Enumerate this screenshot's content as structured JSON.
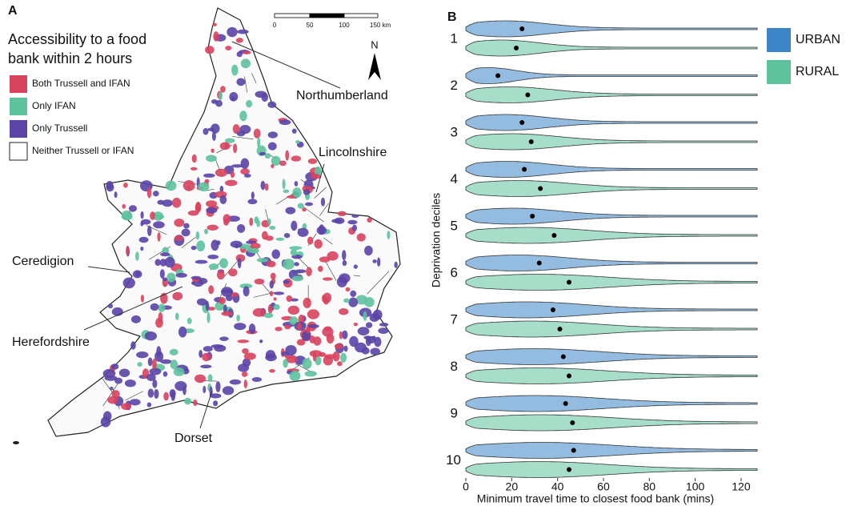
{
  "map": {
    "panel_label": "A",
    "title_lines": [
      "Accessibility to a food",
      "bank within 2 hours"
    ],
    "legend": [
      {
        "label": "Both Trussell and IFAN",
        "color": "#d8435e"
      },
      {
        "label": "Only IFAN",
        "color": "#5ec29d"
      },
      {
        "label": "Only Trussell",
        "color": "#5b44a6"
      },
      {
        "label": "Neither Trussell or IFAN",
        "color": "#ffffff"
      }
    ],
    "scale_bar": [
      "0",
      "50",
      "100",
      "150 km"
    ],
    "north": "N",
    "regions": [
      "Northumberland",
      "Lincolnshire",
      "Ceredigion",
      "Herefordshire",
      "Dorset"
    ]
  },
  "chart_data": {
    "type": "violin",
    "panel_label": "B",
    "categories": [
      "1",
      "2",
      "3",
      "4",
      "5",
      "6",
      "7",
      "8",
      "9",
      "10"
    ],
    "series": [
      {
        "name": "URBAN",
        "color": "#3d85c6",
        "values": [
          24.5,
          14,
          24.5,
          25.5,
          29,
          32,
          38,
          42.5,
          43.5,
          47
        ]
      },
      {
        "name": "RURAL",
        "color": "#5ec29d",
        "values": [
          22,
          27,
          28.5,
          32.5,
          38.5,
          45,
          41,
          45,
          46.5,
          45
        ]
      }
    ],
    "xlim": [
      0,
      127
    ],
    "xticks": [
      0,
      20,
      40,
      60,
      80,
      100,
      120
    ],
    "xlabel": "Minimum travel time to closest food bank (mins)",
    "ylabel": "Deprivation deciles"
  }
}
